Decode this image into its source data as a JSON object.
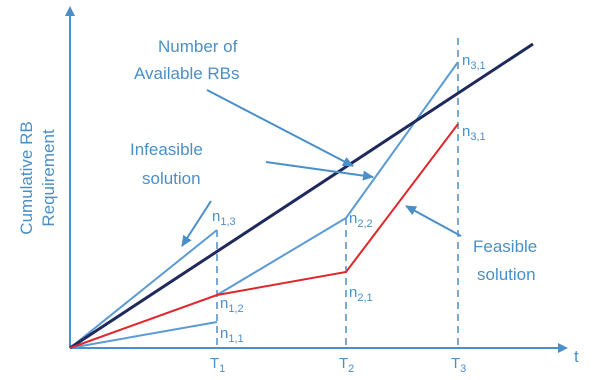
{
  "figure": {
    "y_axis_label_line1": "Cumulative RB",
    "y_axis_label_line2": "Requirement",
    "x_axis_label": "t",
    "ticks": [
      {
        "base": "T",
        "sub": "1"
      },
      {
        "base": "T",
        "sub": "2"
      },
      {
        "base": "T",
        "sub": "3"
      }
    ],
    "annotations": {
      "available_line1": "Number of",
      "available_line2": "Available RBs",
      "infeasible_line1": "Infeasible",
      "infeasible_line2": "solution",
      "feasible_line1": "Feasible",
      "feasible_line2": "solution"
    },
    "point_labels": {
      "n13": {
        "base": "n",
        "sub": "1,3"
      },
      "n12": {
        "base": "n",
        "sub": "1,2"
      },
      "n11": {
        "base": "n",
        "sub": "1,1"
      },
      "n22": {
        "base": "n",
        "sub": "2,2"
      },
      "n21": {
        "base": "n",
        "sub": "2,1"
      },
      "n31a": {
        "base": "n",
        "sub": "3,1"
      },
      "n31b": {
        "base": "n",
        "sub": "3,1"
      }
    },
    "colors": {
      "axis": "#4a8fc8",
      "available": "#1f2a5c",
      "infeasible": "#5b9bd5",
      "feasible": "#e0262a",
      "text": "#4a8fc8"
    }
  }
}
